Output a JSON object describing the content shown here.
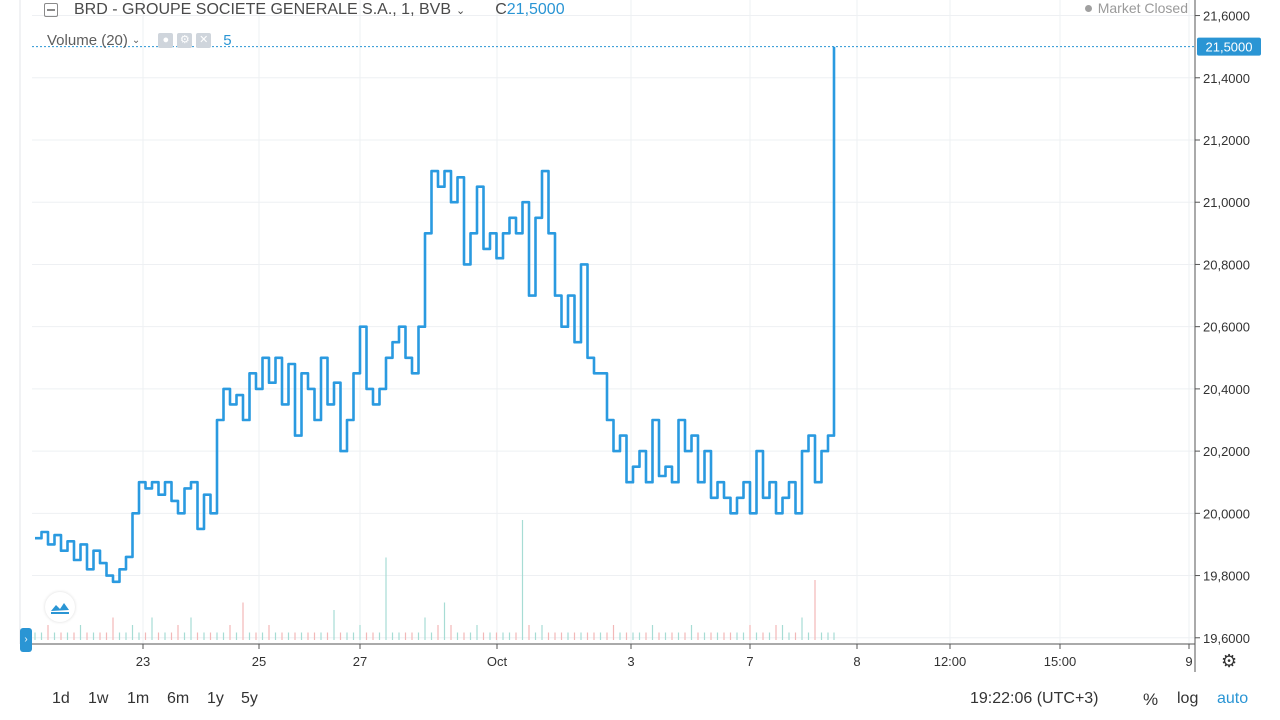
{
  "header": {
    "symbol_title": "BRD - GROUPE SOCIETE GENERALE S.A., 1, BVB",
    "close_prefix": "C",
    "close_value": "21,5000",
    "volume_label": "Volume (20)",
    "volume_value": "5",
    "market_status": "Market Closed"
  },
  "toolbar": {
    "timeframes": [
      "1d",
      "1w",
      "1m",
      "6m",
      "1y",
      "5y"
    ],
    "clock": "19:22:06 (UTC+3)",
    "percent_label": "%",
    "log_label": "log",
    "auto_label": "auto"
  },
  "colors": {
    "line": "#2a9ae0",
    "accent": "#2a95d4",
    "grid": "#eef0f3",
    "axis": "#555555",
    "volume_up": "#a7dcd4",
    "volume_down": "#f2b8b8"
  },
  "chart_data": {
    "type": "line",
    "title": "BRD - GROUPE SOCIETE GENERALE S.A., 1, BVB",
    "ylim": [
      19.58,
      21.65
    ],
    "y_ticks": [
      "21,6000",
      "21,4000",
      "21,2000",
      "21,0000",
      "20,8000",
      "20,6000",
      "20,4000",
      "20,2000",
      "20,0000",
      "19,8000",
      "19,6000"
    ],
    "y_tick_values": [
      21.6,
      21.4,
      21.2,
      21.0,
      20.8,
      20.6,
      20.4,
      20.2,
      20.0,
      19.8,
      19.6
    ],
    "x_ticks": [
      "23",
      "25",
      "27",
      "Oct",
      "3",
      "7",
      "8",
      "12:00",
      "15:00",
      "9"
    ],
    "current_price_label": "21,5000",
    "current_price": 21.5,
    "series": [
      {
        "values": [
          19.92,
          19.94,
          19.9,
          19.93,
          19.88,
          19.91,
          19.85,
          19.9,
          19.82,
          19.88,
          19.84,
          19.8,
          19.78,
          19.82,
          19.86,
          20.0,
          20.1,
          20.08,
          20.1,
          20.06,
          20.1,
          20.04,
          20.0,
          20.08,
          20.1,
          19.95,
          20.06,
          20.0,
          20.3,
          20.4,
          20.35,
          20.38,
          20.3,
          20.45,
          20.4,
          20.5,
          20.42,
          20.5,
          20.35,
          20.48,
          20.25,
          20.45,
          20.4,
          20.3,
          20.5,
          20.35,
          20.42,
          20.2,
          20.3,
          20.45,
          20.6,
          20.4,
          20.35,
          20.4,
          20.5,
          20.55,
          20.6,
          20.5,
          20.45,
          20.6,
          20.9,
          21.1,
          21.05,
          21.1,
          21.0,
          21.08,
          20.8,
          20.9,
          21.05,
          20.85,
          20.9,
          20.82,
          20.9,
          20.95,
          20.9,
          21.0,
          20.7,
          20.95,
          21.1,
          20.9,
          20.7,
          20.6,
          20.7,
          20.55,
          20.8,
          20.5,
          20.45,
          20.45,
          20.3,
          20.2,
          20.25,
          20.1,
          20.15,
          20.2,
          20.1,
          20.3,
          20.12,
          20.15,
          20.1,
          20.3,
          20.2,
          20.25,
          20.1,
          20.2,
          20.05,
          20.1,
          20.05,
          20.0,
          20.05,
          20.1,
          20.0,
          20.2,
          20.05,
          20.1,
          20.0,
          20.05,
          20.1,
          20.0,
          20.2,
          20.25,
          20.1,
          20.2,
          20.25,
          21.5
        ]
      }
    ],
    "volume": {
      "label": "Volume (20)",
      "values": [
        1,
        1,
        2,
        1,
        1,
        1,
        1,
        2,
        1,
        1,
        1,
        1,
        3,
        1,
        1,
        2,
        1,
        1,
        3,
        1,
        1,
        1,
        2,
        1,
        3,
        1,
        1,
        1,
        1,
        1,
        2,
        1,
        5,
        1,
        1,
        1,
        2,
        1,
        1,
        1,
        1,
        1,
        1,
        1,
        1,
        1,
        4,
        1,
        1,
        1,
        2,
        1,
        1,
        1,
        11,
        1,
        1,
        1,
        1,
        1,
        3,
        1,
        2,
        5,
        2,
        1,
        1,
        1,
        2,
        1,
        1,
        1,
        1,
        1,
        1,
        16,
        2,
        1,
        2,
        1,
        1,
        1,
        1,
        1,
        1,
        1,
        1,
        1,
        1,
        2,
        1,
        1,
        1,
        1,
        1,
        2,
        1,
        1,
        1,
        1,
        1,
        2,
        1,
        1,
        1,
        1,
        1,
        1,
        1,
        1,
        2,
        1,
        1,
        1,
        2,
        2,
        1,
        1,
        3,
        1,
        8,
        1,
        1,
        1
      ]
    }
  }
}
